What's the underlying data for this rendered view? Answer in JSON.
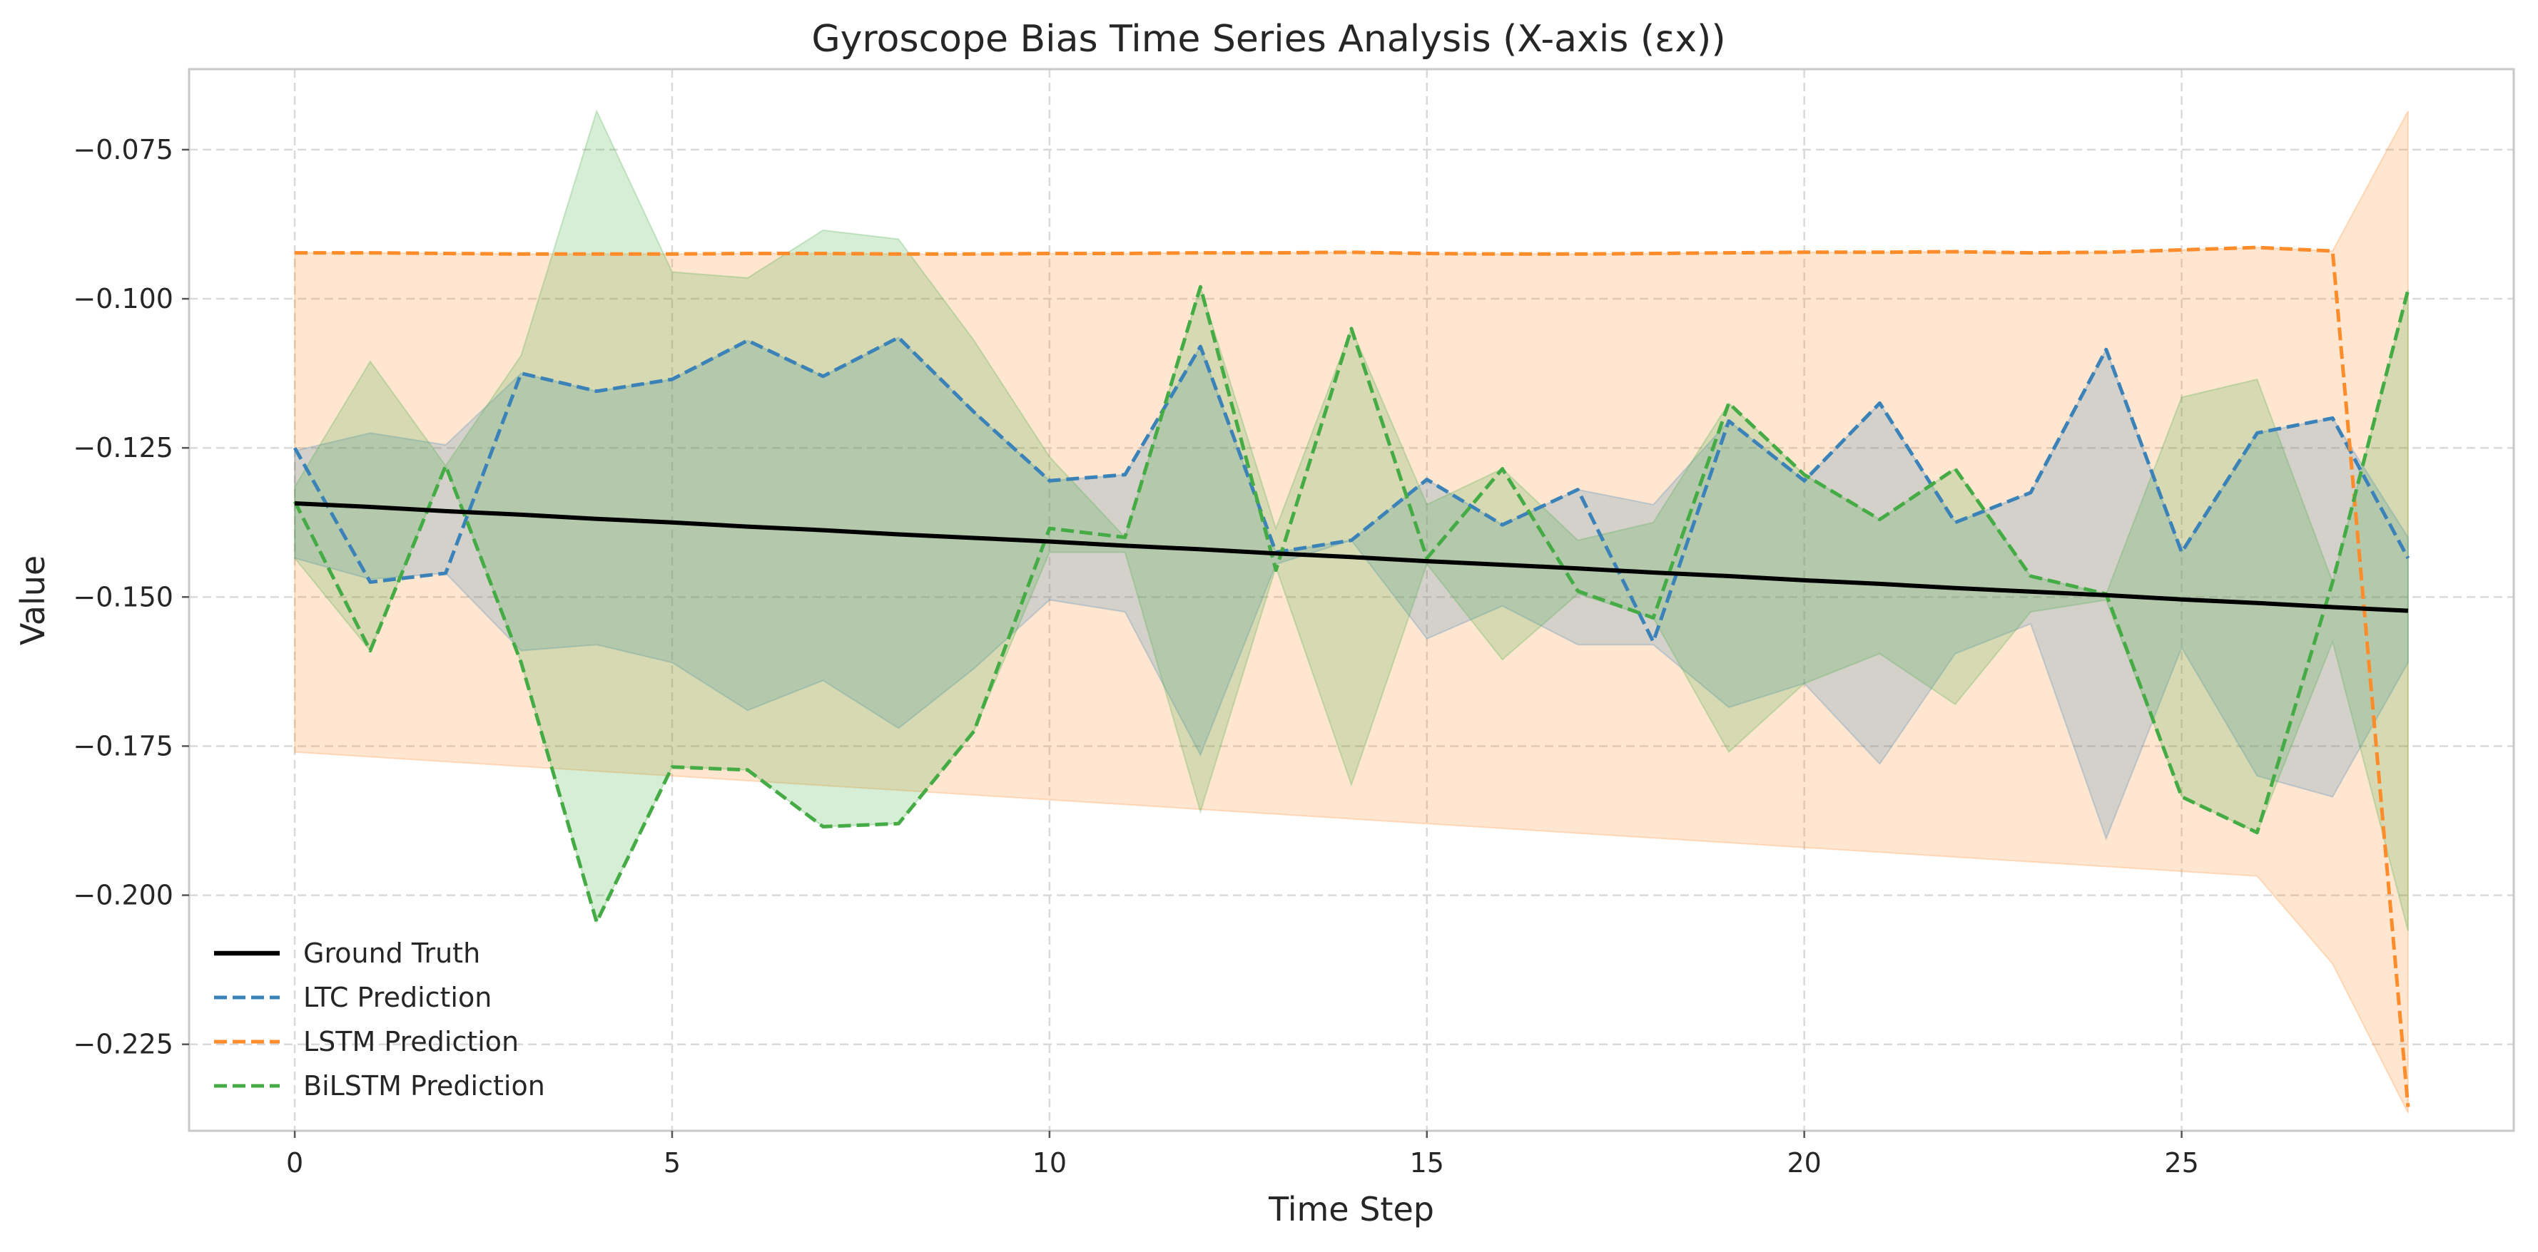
{
  "chart_data": {
    "type": "line",
    "title": "Gyroscope Bias Time Series Analysis (X-axis (εx))",
    "xlabel": "Time Step",
    "ylabel": "Value",
    "xlim": [
      -1.4,
      29.4
    ],
    "ylim": [
      -0.2395,
      -0.0615
    ],
    "xticks": [
      0,
      5,
      10,
      15,
      20,
      25
    ],
    "yticks": [
      -0.225,
      -0.2,
      -0.175,
      -0.15,
      -0.125,
      -0.1,
      -0.075
    ],
    "ytick_labels": [
      "−0.225",
      "−0.200",
      "−0.175",
      "−0.150",
      "−0.125",
      "−0.100",
      "−0.075"
    ],
    "grid": true,
    "legend_position": "lower-left",
    "x": [
      0,
      1,
      2,
      3,
      4,
      5,
      6,
      7,
      8,
      9,
      10,
      11,
      12,
      13,
      14,
      15,
      16,
      17,
      18,
      19,
      20,
      21,
      22,
      23,
      24,
      25,
      26,
      27,
      28
    ],
    "series": [
      {
        "name": "Ground Truth",
        "color": "#000000",
        "style": "solid",
        "values": [
          -0.1343,
          -0.1349,
          -0.1356,
          -0.1362,
          -0.1369,
          -0.1375,
          -0.1382,
          -0.1388,
          -0.1395,
          -0.1401,
          -0.1407,
          -0.1414,
          -0.142,
          -0.1427,
          -0.1433,
          -0.144,
          -0.1446,
          -0.1452,
          -0.1459,
          -0.1465,
          -0.1472,
          -0.1478,
          -0.1485,
          -0.1491,
          -0.1497,
          -0.1504,
          -0.151,
          -0.1517,
          -0.1523
        ]
      },
      {
        "name": "LTC Prediction",
        "color": "#3a82b8",
        "style": "dashed",
        "values": [
          -0.125,
          -0.1475,
          -0.146,
          -0.1125,
          -0.1155,
          -0.1135,
          -0.107,
          -0.113,
          -0.1065,
          -0.119,
          -0.1305,
          -0.1295,
          -0.108,
          -0.1425,
          -0.1405,
          -0.1303,
          -0.1379,
          -0.132,
          -0.1575,
          -0.1205,
          -0.1305,
          -0.1175,
          -0.1375,
          -0.1325,
          -0.1085,
          -0.1425,
          -0.1225,
          -0.12,
          -0.1435
        ],
        "band_lower": [
          -0.1435,
          -0.147,
          -0.146,
          -0.159,
          -0.158,
          -0.161,
          -0.169,
          -0.164,
          -0.172,
          -0.162,
          -0.1505,
          -0.1525,
          -0.1765,
          -0.1445,
          -0.1405,
          -0.157,
          -0.1515,
          -0.158,
          -0.158,
          -0.1685,
          -0.1645,
          -0.178,
          -0.1595,
          -0.1545,
          -0.1905,
          -0.1585,
          -0.18,
          -0.1835,
          -0.161
        ],
        "band_upper": [
          -0.1255,
          -0.1225,
          -0.1245,
          -0.1125,
          -0.1155,
          -0.1135,
          -0.107,
          -0.113,
          -0.1065,
          -0.119,
          -0.1305,
          -0.1295,
          -0.108,
          -0.1425,
          -0.1405,
          -0.1303,
          -0.1379,
          -0.132,
          -0.1345,
          -0.1205,
          -0.1305,
          -0.1175,
          -0.1375,
          -0.1325,
          -0.1085,
          -0.1425,
          -0.1225,
          -0.12,
          -0.14
        ]
      },
      {
        "name": "LSTM Prediction",
        "color": "#ff8c2a",
        "style": "dashed",
        "values": [
          -0.0923,
          -0.0923,
          -0.0924,
          -0.0925,
          -0.0925,
          -0.0925,
          -0.0924,
          -0.0924,
          -0.0925,
          -0.0925,
          -0.0924,
          -0.0924,
          -0.0923,
          -0.0923,
          -0.0922,
          -0.0924,
          -0.0925,
          -0.0925,
          -0.0924,
          -0.0923,
          -0.0922,
          -0.0922,
          -0.0921,
          -0.0923,
          -0.0922,
          -0.0918,
          -0.0914,
          -0.092,
          -0.2355
        ],
        "band_lower": [
          -0.176,
          -0.1768,
          -0.1776,
          -0.1784,
          -0.1792,
          -0.18,
          -0.1808,
          -0.1816,
          -0.1824,
          -0.1832,
          -0.184,
          -0.1848,
          -0.1856,
          -0.1864,
          -0.1872,
          -0.188,
          -0.1888,
          -0.1896,
          -0.1904,
          -0.1912,
          -0.192,
          -0.1928,
          -0.1936,
          -0.1944,
          -0.1952,
          -0.196,
          -0.1968,
          -0.2115,
          -0.2365
        ],
        "band_upper": [
          -0.0923,
          -0.0923,
          -0.0924,
          -0.0925,
          -0.0925,
          -0.0925,
          -0.0924,
          -0.0924,
          -0.0925,
          -0.0925,
          -0.0924,
          -0.0924,
          -0.0923,
          -0.0923,
          -0.0922,
          -0.0924,
          -0.0925,
          -0.0925,
          -0.0924,
          -0.0923,
          -0.0922,
          -0.0922,
          -0.0921,
          -0.0923,
          -0.0922,
          -0.0918,
          -0.0914,
          -0.092,
          -0.0685
        ]
      },
      {
        "name": "BiLSTM Prediction",
        "color": "#45ab45",
        "style": "dashed",
        "values": [
          -0.134,
          -0.159,
          -0.128,
          -0.161,
          -0.2045,
          -0.1785,
          -0.179,
          -0.1885,
          -0.188,
          -0.1725,
          -0.1385,
          -0.14,
          -0.098,
          -0.1455,
          -0.105,
          -0.1435,
          -0.1285,
          -0.149,
          -0.1535,
          -0.1175,
          -0.1295,
          -0.137,
          -0.1285,
          -0.1465,
          -0.1495,
          -0.1835,
          -0.1895,
          -0.1475,
          -0.0985
        ],
        "band_lower": [
          -0.1435,
          -0.159,
          -0.128,
          -0.161,
          -0.2045,
          -0.1785,
          -0.179,
          -0.1885,
          -0.188,
          -0.1725,
          -0.1425,
          -0.1425,
          -0.186,
          -0.145,
          -0.1815,
          -0.1445,
          -0.1605,
          -0.1495,
          -0.1535,
          -0.176,
          -0.1645,
          -0.1595,
          -0.168,
          -0.1525,
          -0.1505,
          -0.1835,
          -0.1895,
          -0.1575,
          -0.206
        ],
        "band_upper": [
          -0.1315,
          -0.1105,
          -0.128,
          -0.1095,
          -0.0685,
          -0.0955,
          -0.0965,
          -0.0885,
          -0.09,
          -0.107,
          -0.1265,
          -0.14,
          -0.098,
          -0.1385,
          -0.105,
          -0.1345,
          -0.1285,
          -0.1405,
          -0.1375,
          -0.1175,
          -0.1295,
          -0.137,
          -0.1285,
          -0.1465,
          -0.1495,
          -0.1165,
          -0.1135,
          -0.1475,
          -0.0985
        ]
      }
    ]
  }
}
